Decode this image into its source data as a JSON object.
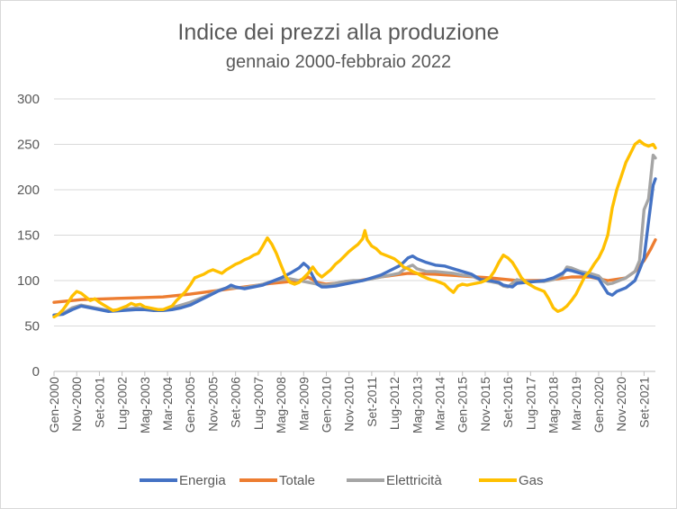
{
  "chart_data": {
    "type": "line",
    "title": "Indice dei prezzi alla produzione",
    "subtitle": "gennaio 2000-febbraio 2022",
    "xlabel": "",
    "ylabel": "",
    "ylim": [
      0,
      300
    ],
    "yticks": [
      0,
      50,
      100,
      150,
      200,
      250,
      300
    ],
    "grid": true,
    "legend_position": "bottom",
    "x_tick_labels": [
      "Gen-2000",
      "Nov-2000",
      "Set-2001",
      "Lug-2002",
      "Mag-2003",
      "Mar-2004",
      "Gen-2005",
      "Nov-2005",
      "Set-2006",
      "Lug-2007",
      "Mag-2008",
      "Mar-2009",
      "Gen-2010",
      "Nov-2010",
      "Set-2011",
      "Lug-2012",
      "Mag-2013",
      "Mar-2014",
      "Gen-2015",
      "Nov-2015",
      "Set-2016",
      "Lug-2017",
      "Mag-2018",
      "Mar-2019",
      "Gen-2020",
      "Nov-2020",
      "Set-2021"
    ],
    "x_range_months": [
      0,
      265
    ],
    "series": [
      {
        "name": "Energia",
        "color": "#4472C4",
        "points": [
          [
            0,
            62
          ],
          [
            4,
            63
          ],
          [
            8,
            68
          ],
          [
            12,
            72
          ],
          [
            16,
            70
          ],
          [
            20,
            68
          ],
          [
            24,
            66
          ],
          [
            30,
            67
          ],
          [
            36,
            68
          ],
          [
            40,
            68
          ],
          [
            44,
            67
          ],
          [
            48,
            67
          ],
          [
            52,
            68
          ],
          [
            56,
            70
          ],
          [
            60,
            73
          ],
          [
            64,
            78
          ],
          [
            68,
            83
          ],
          [
            72,
            88
          ],
          [
            76,
            92
          ],
          [
            78,
            95
          ],
          [
            80,
            93
          ],
          [
            84,
            91
          ],
          [
            88,
            93
          ],
          [
            92,
            95
          ],
          [
            96,
            99
          ],
          [
            100,
            103
          ],
          [
            104,
            108
          ],
          [
            108,
            114
          ],
          [
            110,
            119
          ],
          [
            112,
            115
          ],
          [
            114,
            105
          ],
          [
            116,
            96
          ],
          [
            118,
            93
          ],
          [
            120,
            93
          ],
          [
            124,
            94
          ],
          [
            128,
            96
          ],
          [
            132,
            98
          ],
          [
            136,
            100
          ],
          [
            140,
            103
          ],
          [
            144,
            106
          ],
          [
            148,
            111
          ],
          [
            152,
            116
          ],
          [
            154,
            120
          ],
          [
            156,
            125
          ],
          [
            158,
            127
          ],
          [
            160,
            124
          ],
          [
            164,
            120
          ],
          [
            168,
            117
          ],
          [
            172,
            116
          ],
          [
            176,
            113
          ],
          [
            180,
            110
          ],
          [
            184,
            107
          ],
          [
            186,
            104
          ],
          [
            188,
            101
          ],
          [
            192,
            100
          ],
          [
            196,
            98
          ],
          [
            198,
            95
          ],
          [
            200,
            94
          ],
          [
            202,
            93
          ],
          [
            204,
            97
          ],
          [
            208,
            98
          ],
          [
            212,
            99
          ],
          [
            216,
            100
          ],
          [
            220,
            103
          ],
          [
            224,
            108
          ],
          [
            226,
            112
          ],
          [
            228,
            111
          ],
          [
            232,
            108
          ],
          [
            236,
            105
          ],
          [
            240,
            102
          ],
          [
            242,
            94
          ],
          [
            244,
            86
          ],
          [
            246,
            84
          ],
          [
            248,
            88
          ],
          [
            252,
            92
          ],
          [
            256,
            100
          ],
          [
            258,
            112
          ],
          [
            260,
            125
          ],
          [
            262,
            165
          ],
          [
            264,
            205
          ],
          [
            265,
            212
          ]
        ]
      },
      {
        "name": "Totale",
        "color": "#ED7D31",
        "points": [
          [
            0,
            76
          ],
          [
            12,
            79
          ],
          [
            24,
            80
          ],
          [
            36,
            81
          ],
          [
            48,
            82
          ],
          [
            60,
            85
          ],
          [
            72,
            89
          ],
          [
            84,
            93
          ],
          [
            96,
            97
          ],
          [
            108,
            100
          ],
          [
            112,
            104
          ],
          [
            116,
            98
          ],
          [
            120,
            96
          ],
          [
            132,
            99
          ],
          [
            144,
            104
          ],
          [
            156,
            108
          ],
          [
            168,
            107
          ],
          [
            180,
            105
          ],
          [
            192,
            103
          ],
          [
            204,
            100
          ],
          [
            216,
            100
          ],
          [
            228,
            104
          ],
          [
            236,
            104
          ],
          [
            244,
            100
          ],
          [
            252,
            103
          ],
          [
            256,
            110
          ],
          [
            260,
            122
          ],
          [
            263,
            135
          ],
          [
            265,
            145
          ]
        ]
      },
      {
        "name": "Elettricità",
        "color": "#A5A5A5",
        "points": [
          [
            0,
            62
          ],
          [
            4,
            64
          ],
          [
            8,
            70
          ],
          [
            12,
            73
          ],
          [
            16,
            71
          ],
          [
            20,
            69
          ],
          [
            24,
            67
          ],
          [
            30,
            68
          ],
          [
            36,
            70
          ],
          [
            40,
            69
          ],
          [
            44,
            68
          ],
          [
            48,
            68
          ],
          [
            52,
            70
          ],
          [
            56,
            73
          ],
          [
            60,
            76
          ],
          [
            64,
            80
          ],
          [
            68,
            84
          ],
          [
            72,
            89
          ],
          [
            76,
            92
          ],
          [
            80,
            92
          ],
          [
            84,
            92
          ],
          [
            88,
            94
          ],
          [
            92,
            96
          ],
          [
            96,
            99
          ],
          [
            100,
            101
          ],
          [
            104,
            102
          ],
          [
            108,
            100
          ],
          [
            112,
            98
          ],
          [
            116,
            96
          ],
          [
            120,
            95
          ],
          [
            124,
            97
          ],
          [
            128,
            99
          ],
          [
            132,
            100
          ],
          [
            136,
            100
          ],
          [
            140,
            102
          ],
          [
            144,
            104
          ],
          [
            148,
            106
          ],
          [
            152,
            108
          ],
          [
            154,
            112
          ],
          [
            156,
            115
          ],
          [
            158,
            117
          ],
          [
            160,
            113
          ],
          [
            164,
            110
          ],
          [
            168,
            110
          ],
          [
            172,
            109
          ],
          [
            176,
            108
          ],
          [
            180,
            106
          ],
          [
            184,
            105
          ],
          [
            186,
            103
          ],
          [
            188,
            101
          ],
          [
            192,
            99
          ],
          [
            196,
            97
          ],
          [
            198,
            94
          ],
          [
            200,
            93
          ],
          [
            202,
            97
          ],
          [
            204,
            101
          ],
          [
            208,
            99
          ],
          [
            212,
            99
          ],
          [
            216,
            99
          ],
          [
            220,
            101
          ],
          [
            224,
            106
          ],
          [
            226,
            115
          ],
          [
            228,
            114
          ],
          [
            232,
            110
          ],
          [
            236,
            108
          ],
          [
            240,
            105
          ],
          [
            242,
            100
          ],
          [
            244,
            96
          ],
          [
            246,
            97
          ],
          [
            248,
            99
          ],
          [
            252,
            103
          ],
          [
            256,
            110
          ],
          [
            258,
            122
          ],
          [
            260,
            178
          ],
          [
            262,
            190
          ],
          [
            264,
            238
          ],
          [
            265,
            235
          ]
        ]
      },
      {
        "name": "Gas",
        "color": "#FFC000",
        "points": [
          [
            0,
            60
          ],
          [
            2,
            63
          ],
          [
            4,
            68
          ],
          [
            6,
            75
          ],
          [
            8,
            83
          ],
          [
            10,
            88
          ],
          [
            12,
            86
          ],
          [
            14,
            82
          ],
          [
            16,
            78
          ],
          [
            18,
            80
          ],
          [
            20,
            76
          ],
          [
            22,
            73
          ],
          [
            24,
            70
          ],
          [
            26,
            67
          ],
          [
            28,
            68
          ],
          [
            30,
            70
          ],
          [
            32,
            72
          ],
          [
            34,
            75
          ],
          [
            36,
            73
          ],
          [
            38,
            74
          ],
          [
            40,
            71
          ],
          [
            42,
            70
          ],
          [
            44,
            69
          ],
          [
            46,
            68
          ],
          [
            48,
            68
          ],
          [
            50,
            70
          ],
          [
            52,
            72
          ],
          [
            54,
            78
          ],
          [
            56,
            83
          ],
          [
            58,
            88
          ],
          [
            60,
            95
          ],
          [
            62,
            103
          ],
          [
            64,
            105
          ],
          [
            66,
            107
          ],
          [
            68,
            110
          ],
          [
            70,
            112
          ],
          [
            72,
            110
          ],
          [
            74,
            108
          ],
          [
            76,
            112
          ],
          [
            78,
            115
          ],
          [
            80,
            118
          ],
          [
            82,
            120
          ],
          [
            84,
            123
          ],
          [
            86,
            125
          ],
          [
            88,
            128
          ],
          [
            90,
            130
          ],
          [
            92,
            138
          ],
          [
            94,
            147
          ],
          [
            96,
            140
          ],
          [
            98,
            130
          ],
          [
            100,
            117
          ],
          [
            102,
            105
          ],
          [
            104,
            98
          ],
          [
            106,
            96
          ],
          [
            108,
            98
          ],
          [
            110,
            103
          ],
          [
            112,
            108
          ],
          [
            114,
            115
          ],
          [
            116,
            108
          ],
          [
            118,
            104
          ],
          [
            120,
            108
          ],
          [
            122,
            112
          ],
          [
            124,
            118
          ],
          [
            126,
            122
          ],
          [
            128,
            127
          ],
          [
            130,
            132
          ],
          [
            132,
            136
          ],
          [
            134,
            140
          ],
          [
            136,
            146
          ],
          [
            137,
            155
          ],
          [
            138,
            145
          ],
          [
            140,
            138
          ],
          [
            142,
            135
          ],
          [
            144,
            130
          ],
          [
            146,
            128
          ],
          [
            148,
            126
          ],
          [
            150,
            124
          ],
          [
            152,
            120
          ],
          [
            154,
            115
          ],
          [
            156,
            113
          ],
          [
            158,
            110
          ],
          [
            160,
            108
          ],
          [
            162,
            105
          ],
          [
            164,
            103
          ],
          [
            166,
            101
          ],
          [
            168,
            100
          ],
          [
            170,
            98
          ],
          [
            172,
            96
          ],
          [
            174,
            91
          ],
          [
            176,
            87
          ],
          [
            178,
            94
          ],
          [
            180,
            96
          ],
          [
            182,
            95
          ],
          [
            184,
            96
          ],
          [
            186,
            97
          ],
          [
            188,
            98
          ],
          [
            190,
            100
          ],
          [
            192,
            103
          ],
          [
            194,
            110
          ],
          [
            196,
            120
          ],
          [
            198,
            128
          ],
          [
            200,
            125
          ],
          [
            202,
            120
          ],
          [
            204,
            112
          ],
          [
            206,
            103
          ],
          [
            208,
            98
          ],
          [
            210,
            95
          ],
          [
            212,
            92
          ],
          [
            214,
            90
          ],
          [
            216,
            88
          ],
          [
            218,
            80
          ],
          [
            220,
            70
          ],
          [
            222,
            66
          ],
          [
            224,
            68
          ],
          [
            226,
            72
          ],
          [
            228,
            78
          ],
          [
            230,
            85
          ],
          [
            232,
            95
          ],
          [
            234,
            105
          ],
          [
            236,
            110
          ],
          [
            238,
            118
          ],
          [
            240,
            125
          ],
          [
            242,
            135
          ],
          [
            244,
            150
          ],
          [
            246,
            180
          ],
          [
            248,
            200
          ],
          [
            250,
            215
          ],
          [
            252,
            230
          ],
          [
            254,
            240
          ],
          [
            256,
            250
          ],
          [
            258,
            254
          ],
          [
            260,
            250
          ],
          [
            262,
            248
          ],
          [
            264,
            250
          ],
          [
            265,
            246
          ]
        ]
      }
    ]
  }
}
